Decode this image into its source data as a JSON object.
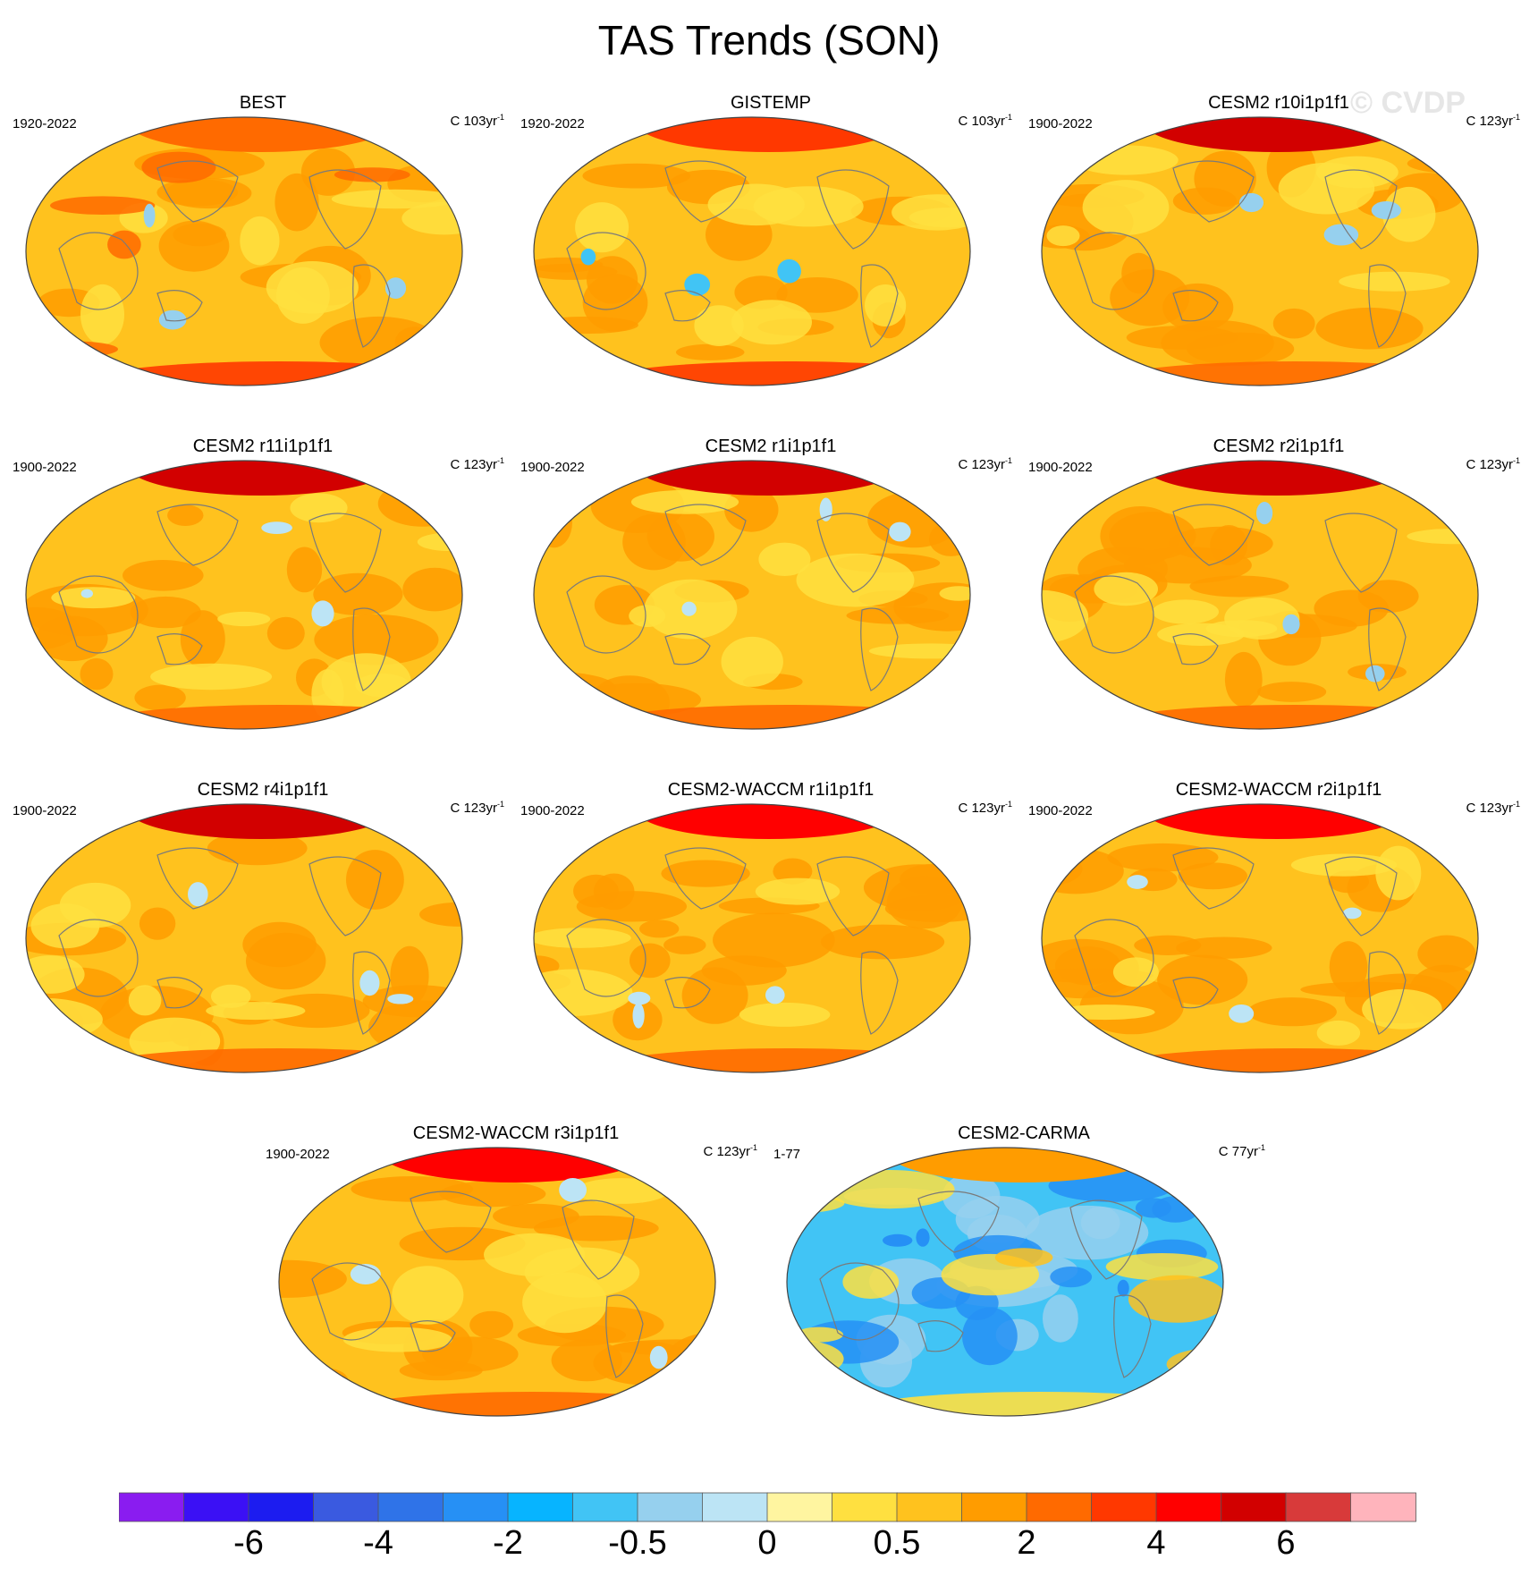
{
  "title": "TAS Trends (SON)",
  "watermark": "© CVDP",
  "panels": [
    {
      "title": "BEST",
      "period": "1920-2022",
      "units": "C 103yr",
      "units_exp": "-1",
      "style": "obs_best"
    },
    {
      "title": "GISTEMP",
      "period": "1920-2022",
      "units": "C 103yr",
      "units_exp": "-1",
      "style": "obs_gis"
    },
    {
      "title": "CESM2 r10i1p1f1",
      "period": "1900-2022",
      "units": "C 123yr",
      "units_exp": "-1",
      "style": "model_a"
    },
    {
      "title": "CESM2 r11i1p1f1",
      "period": "1900-2022",
      "units": "C 123yr",
      "units_exp": "-1",
      "style": "model_b"
    },
    {
      "title": "CESM2 r1i1p1f1",
      "period": "1900-2022",
      "units": "C 123yr",
      "units_exp": "-1",
      "style": "model_b"
    },
    {
      "title": "CESM2 r2i1p1f1",
      "period": "1900-2022",
      "units": "C 123yr",
      "units_exp": "-1",
      "style": "model_a"
    },
    {
      "title": "CESM2 r4i1p1f1",
      "period": "1900-2022",
      "units": "C 123yr",
      "units_exp": "-1",
      "style": "model_b"
    },
    {
      "title": "CESM2-WACCM r1i1p1f1",
      "period": "1900-2022",
      "units": "C 123yr",
      "units_exp": "-1",
      "style": "model_c"
    },
    {
      "title": "CESM2-WACCM r2i1p1f1",
      "period": "1900-2022",
      "units": "C 123yr",
      "units_exp": "-1",
      "style": "model_c"
    },
    {
      "title": "CESM2-WACCM r3i1p1f1",
      "period": "1900-2022",
      "units": "C 123yr",
      "units_exp": "-1",
      "style": "model_c"
    },
    {
      "title": "CESM2-CARMA",
      "period": "1-77",
      "units": "C 77yr",
      "units_exp": "-1",
      "style": "carma"
    }
  ],
  "colorbar": {
    "colors": [
      "#8a1cf0",
      "#3b10f5",
      "#1c1cf0",
      "#3a5ae0",
      "#2f73e8",
      "#2690f5",
      "#07b4ff",
      "#41c4f5",
      "#96d0ee",
      "#bce4f5",
      "#fff5a0",
      "#ffe040",
      "#ffc21e",
      "#ff9c00",
      "#ff6a00",
      "#ff3800",
      "#ff0000",
      "#d20000",
      "#d83a3a",
      "#ffb4bc"
    ],
    "tick_labels": [
      "-6",
      "-4",
      "-2",
      "-0.5",
      "0",
      "0.5",
      "2",
      "4",
      "6"
    ],
    "tick_boundaries": [
      2,
      4,
      6,
      8,
      10,
      12,
      14,
      16,
      18
    ]
  }
}
